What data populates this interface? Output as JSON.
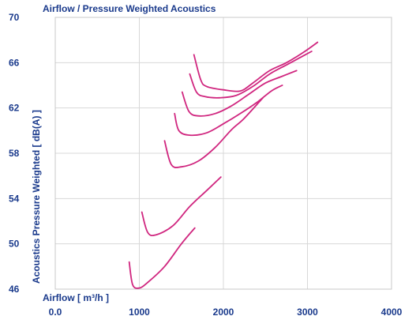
{
  "chart_data": {
    "type": "line",
    "title": "Airflow / Pressure Weighted Acoustics",
    "xlabel": "Airflow [ m³/h ]",
    "ylabel": "Acoustics Pressure Weighted [ dB(A) ]",
    "xlim": [
      0,
      4000
    ],
    "ylim": [
      46,
      70
    ],
    "x_ticks": [
      "0.0",
      "1000",
      "2000",
      "3000",
      "4000"
    ],
    "y_ticks": [
      "46",
      "50",
      "54",
      "58",
      "62",
      "66",
      "70"
    ],
    "grid": true,
    "legend": "none",
    "line_color": "#d0267f",
    "series": [
      {
        "x": [
          880,
          920,
          1000,
          1100,
          1300,
          1500,
          1660
        ],
        "y": [
          48.4,
          46.4,
          46.1,
          46.6,
          48.0,
          50.0,
          51.4
        ]
      },
      {
        "x": [
          1030,
          1100,
          1200,
          1400,
          1600,
          1800,
          1970
        ],
        "y": [
          52.8,
          51.0,
          50.8,
          51.6,
          53.3,
          54.7,
          55.9
        ]
      },
      {
        "x": [
          1300,
          1380,
          1500,
          1700,
          1900,
          2100,
          2250,
          2470
        ],
        "y": [
          59.1,
          57.0,
          56.8,
          57.3,
          58.5,
          60.1,
          61.1,
          62.9
        ]
      },
      {
        "x": [
          1420,
          1470,
          1600,
          1800,
          2000,
          2200,
          2400,
          2570,
          2700
        ],
        "y": [
          61.5,
          60.0,
          59.6,
          59.8,
          60.6,
          61.5,
          62.5,
          63.5,
          64.0
        ]
      },
      {
        "x": [
          1510,
          1590,
          1700,
          1900,
          2100,
          2300,
          2500,
          2700,
          2870
        ],
        "y": [
          63.4,
          61.7,
          61.3,
          61.5,
          62.2,
          63.2,
          64.2,
          64.8,
          65.3
        ]
      },
      {
        "x": [
          1600,
          1680,
          1780,
          1950,
          2150,
          2350,
          2550,
          2750,
          2900,
          3050
        ],
        "y": [
          65.0,
          63.4,
          63.0,
          62.9,
          63.1,
          63.9,
          65.0,
          65.8,
          66.4,
          67.0
        ]
      },
      {
        "x": [
          1650,
          1730,
          1800,
          2000,
          2200,
          2350,
          2550,
          2750,
          2950,
          3120
        ],
        "y": [
          66.7,
          64.5,
          63.9,
          63.6,
          63.5,
          64.2,
          65.3,
          66.0,
          66.9,
          67.8
        ]
      }
    ]
  }
}
